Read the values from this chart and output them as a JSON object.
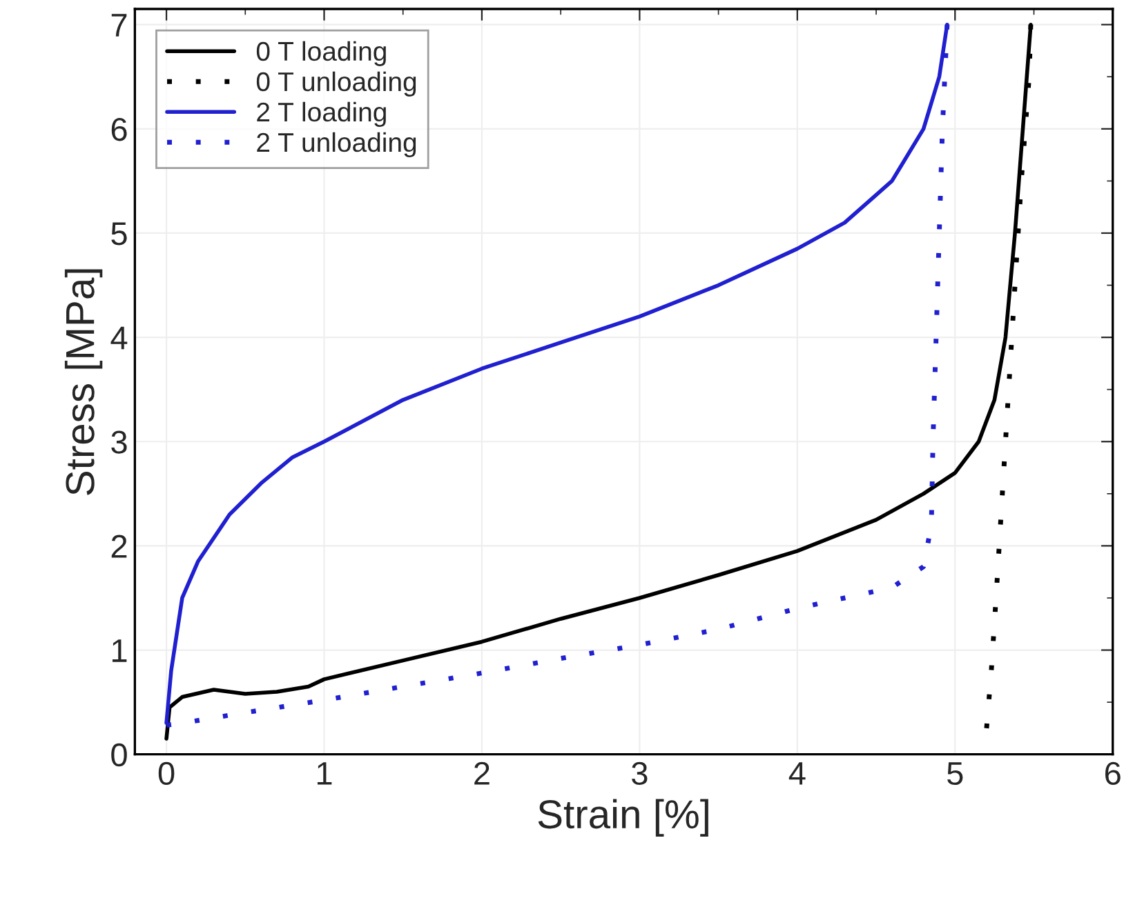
{
  "chart_data": {
    "type": "line",
    "xlabel": "Strain [%]",
    "ylabel": "Stress [MPa]",
    "xlim": [
      -0.2,
      6
    ],
    "ylim": [
      0,
      7.15
    ],
    "xticks": [
      0,
      1,
      2,
      3,
      4,
      5,
      6
    ],
    "yticks": [
      0,
      1,
      2,
      3,
      4,
      5,
      6,
      7
    ],
    "grid": true,
    "legend": "top left",
    "series": [
      {
        "name": "0 T loading",
        "color": "#000000",
        "line_style": "solid",
        "x": [
          0.0,
          0.02,
          0.1,
          0.3,
          0.5,
          0.7,
          0.9,
          1.0,
          1.5,
          2.0,
          2.5,
          3.0,
          3.5,
          4.0,
          4.5,
          4.8,
          5.0,
          5.15,
          5.25,
          5.32,
          5.38,
          5.43,
          5.48
        ],
        "values": [
          0.15,
          0.45,
          0.55,
          0.62,
          0.58,
          0.6,
          0.65,
          0.72,
          0.9,
          1.08,
          1.3,
          1.5,
          1.72,
          1.95,
          2.25,
          2.5,
          2.7,
          3.0,
          3.4,
          4.0,
          5.0,
          6.0,
          7.0
        ]
      },
      {
        "name": "0 T unloading",
        "color": "#000000",
        "line_style": "dotted",
        "x": [
          5.48,
          5.47,
          5.42,
          5.38,
          5.34,
          5.3,
          5.26,
          5.23,
          5.2
        ],
        "values": [
          7.0,
          6.5,
          5.5,
          4.5,
          3.5,
          2.5,
          1.5,
          0.8,
          0.25
        ]
      },
      {
        "name": "2 T loading",
        "color": "#2020d0",
        "line_style": "solid",
        "x": [
          0.0,
          0.03,
          0.1,
          0.2,
          0.4,
          0.6,
          0.8,
          1.0,
          1.5,
          2.0,
          2.5,
          3.0,
          3.5,
          4.0,
          4.3,
          4.6,
          4.8,
          4.9,
          4.95
        ],
        "values": [
          0.3,
          0.8,
          1.5,
          1.85,
          2.3,
          2.6,
          2.85,
          3.0,
          3.4,
          3.7,
          3.95,
          4.2,
          4.5,
          4.85,
          5.1,
          5.5,
          6.0,
          6.5,
          7.0
        ]
      },
      {
        "name": "2 T unloading",
        "color": "#2020d0",
        "line_style": "dotted",
        "x": [
          4.95,
          4.92,
          4.9,
          4.88,
          4.86,
          4.85,
          4.8,
          4.6,
          4.0,
          3.5,
          3.0,
          2.5,
          2.0,
          1.5,
          1.0,
          0.5,
          0.1,
          0.0
        ],
        "values": [
          7.0,
          6.0,
          5.0,
          4.0,
          3.0,
          2.2,
          1.8,
          1.6,
          1.4,
          1.2,
          1.05,
          0.92,
          0.78,
          0.65,
          0.52,
          0.4,
          0.3,
          0.28
        ]
      }
    ]
  }
}
